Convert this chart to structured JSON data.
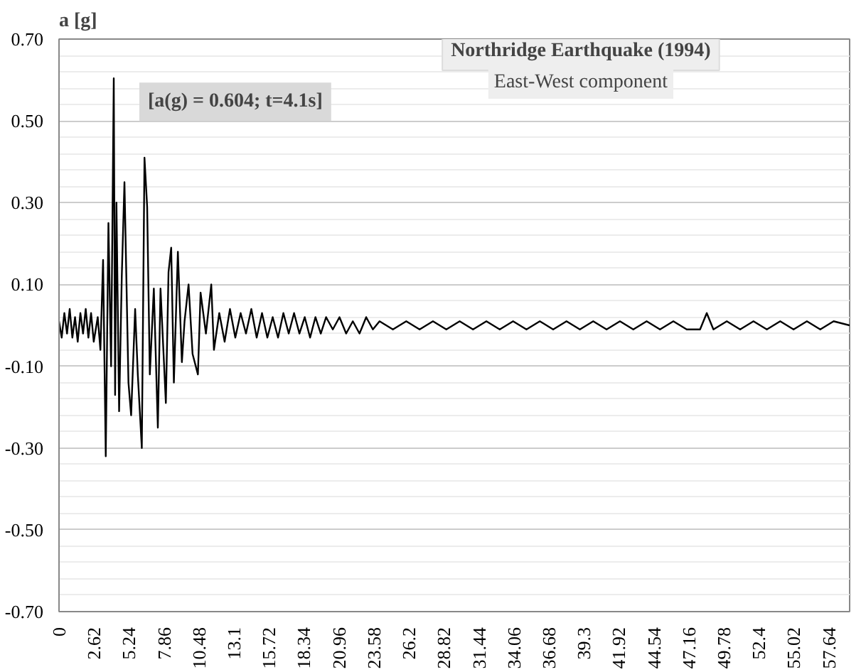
{
  "chart_data": {
    "type": "line",
    "title": "Northridge Earthquake (1994)",
    "subtitle": "East-West component",
    "ylabel": "a [g]",
    "annotations": [
      {
        "text": "[a(g) = 0.604; t=4.1s]",
        "x": 4.1,
        "y": 0.604
      }
    ],
    "series": [
      {
        "color": "#000000",
        "x": [
          0,
          0.2,
          0.4,
          0.6,
          0.8,
          1.0,
          1.2,
          1.4,
          1.6,
          1.8,
          2.0,
          2.2,
          2.4,
          2.6,
          2.9,
          3.1,
          3.3,
          3.5,
          3.7,
          3.9,
          4.1,
          4.2,
          4.3,
          4.5,
          4.7,
          4.9,
          5.2,
          5.4,
          5.7,
          5.9,
          6.2,
          6.4,
          6.6,
          6.8,
          7.1,
          7.4,
          7.6,
          8.0,
          8.2,
          8.4,
          8.6,
          8.9,
          9.2,
          9.4,
          9.7,
          10.0,
          10.4,
          10.6,
          11.0,
          11.4,
          11.6,
          12.0,
          12.4,
          12.8,
          13.2,
          13.6,
          14.0,
          14.4,
          14.8,
          15.2,
          15.6,
          16.0,
          16.4,
          16.8,
          17.2,
          17.6,
          18.0,
          18.4,
          18.8,
          19.2,
          19.6,
          20.0,
          20.5,
          21.0,
          21.5,
          22.0,
          22.5,
          23.0,
          23.5,
          24.0,
          25,
          26,
          27,
          28,
          29,
          30,
          31,
          32,
          33,
          34,
          35,
          36,
          37,
          38,
          39,
          40,
          41,
          42,
          43,
          44,
          45,
          46,
          47,
          48,
          48.5,
          49,
          50,
          51,
          52,
          53,
          54,
          55,
          56,
          57,
          58,
          59.2
        ],
        "values": [
          0.01,
          -0.03,
          0.03,
          -0.02,
          0.04,
          -0.03,
          0.02,
          -0.04,
          0.03,
          -0.02,
          0.04,
          -0.03,
          0.03,
          -0.04,
          0.02,
          -0.06,
          0.16,
          -0.32,
          0.25,
          -0.1,
          0.604,
          -0.17,
          0.3,
          -0.21,
          0.12,
          0.35,
          -0.14,
          -0.22,
          0.04,
          -0.12,
          -0.3,
          0.41,
          0.29,
          -0.12,
          0.09,
          -0.25,
          0.09,
          -0.19,
          0.13,
          0.19,
          -0.14,
          0.18,
          -0.09,
          0.01,
          0.1,
          -0.07,
          -0.12,
          0.08,
          -0.02,
          0.1,
          -0.06,
          0.03,
          -0.04,
          0.04,
          -0.03,
          0.03,
          -0.02,
          0.04,
          -0.03,
          0.03,
          -0.03,
          0.02,
          -0.03,
          0.03,
          -0.02,
          0.03,
          -0.02,
          0.02,
          -0.03,
          0.02,
          -0.02,
          0.02,
          -0.01,
          0.02,
          -0.02,
          0.01,
          -0.02,
          0.02,
          -0.01,
          0.01,
          -0.01,
          0.01,
          -0.01,
          0.01,
          -0.01,
          0.01,
          -0.01,
          0.01,
          -0.01,
          0.01,
          -0.01,
          0.01,
          -0.01,
          0.01,
          -0.01,
          0.01,
          -0.01,
          0.01,
          -0.01,
          0.01,
          -0.01,
          0.01,
          -0.01,
          -0.01,
          0.03,
          -0.01,
          0.01,
          -0.01,
          0.01,
          -0.01,
          0.01,
          -0.01,
          0.01,
          -0.01,
          0.01,
          0.0
        ]
      }
    ],
    "xlim": [
      0,
      59.2
    ],
    "ylim": [
      -0.7,
      0.7
    ],
    "xticks": [
      0,
      2.62,
      5.24,
      7.86,
      10.48,
      13.1,
      15.72,
      18.34,
      20.96,
      23.58,
      26.2,
      28.82,
      31.44,
      34.06,
      36.68,
      39.3,
      41.92,
      44.54,
      47.16,
      49.78,
      52.4,
      55.02,
      57.64
    ],
    "yticks": [
      {
        "value": -0.7,
        "label": "-0.70"
      },
      {
        "value": -0.5,
        "label": "-0.50"
      },
      {
        "value": -0.3,
        "label": "-0.30"
      },
      {
        "value": -0.1,
        "label": "-0.10"
      },
      {
        "value": 0.1,
        "label": "0.10"
      },
      {
        "value": 0.3,
        "label": "0.30"
      },
      {
        "value": 0.5,
        "label": "0.50"
      },
      {
        "value": 0.7,
        "label": "0.70"
      }
    ],
    "grid": "y",
    "line_style": "solid",
    "marker": "none"
  }
}
